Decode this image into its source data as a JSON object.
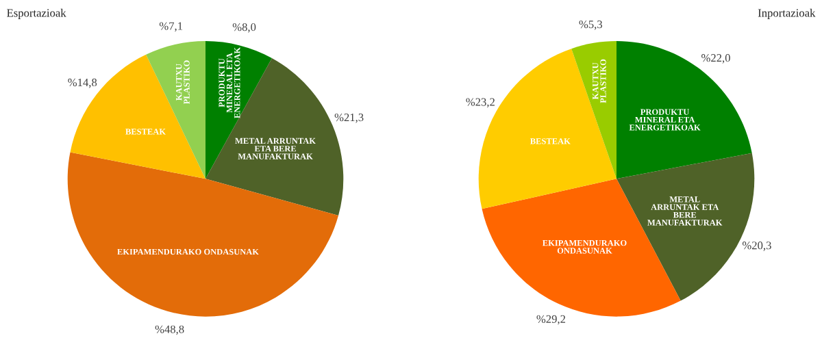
{
  "chart_data": [
    {
      "type": "pie",
      "title": "Esportazioak",
      "categories": [
        "PRODUKTU\nMINERAL ETA\nENERGETIKOAK",
        "METAL ARRUNTAK\nETA BERE\nMANUFAKTURAK",
        "EKIPAMENDURAKO ONDASUNAK",
        "BESTEAK",
        "KAUTXU\nPLASTIKO"
      ],
      "values": [
        8.0,
        21.3,
        48.8,
        14.8,
        7.1
      ],
      "colors": [
        "#008000",
        "#4f6228",
        "#e36c09",
        "#ffc000",
        "#92d050"
      ],
      "value_labels": [
        "%8,0",
        "%21,3",
        "%48,8",
        "%14,8",
        "%7,1"
      ]
    },
    {
      "type": "pie",
      "title": "Inportazioak",
      "categories": [
        "PRODUKTU\nMINERAL ETA\nENERGETIKOAK",
        "METAL\nARRUNTAK ETA\nBERE\nMANUFAKTURAK",
        "EKIPAMENDURAKO\nONDASUNAK",
        "BESTEAK",
        "KAUTXU\nPLASTIKO"
      ],
      "values": [
        22.0,
        20.3,
        29.2,
        23.2,
        5.3
      ],
      "colors": [
        "#008000",
        "#4f6228",
        "#ff6600",
        "#ffcc00",
        "#99cc00"
      ],
      "value_labels": [
        "%22,0",
        "%20,3",
        "%29,2",
        "%23,2",
        "%5,3"
      ]
    }
  ]
}
